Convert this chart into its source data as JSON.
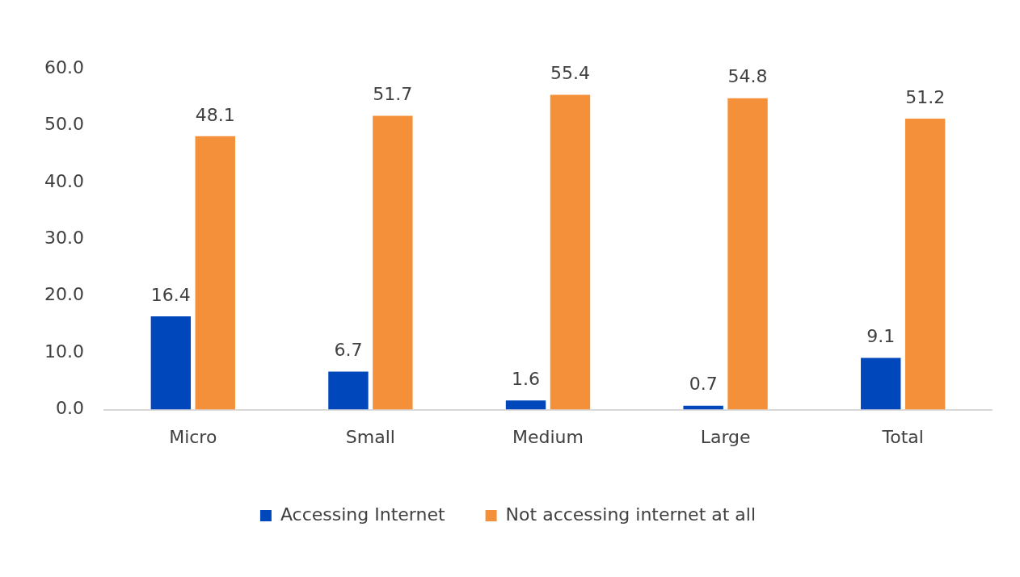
{
  "chart_data": {
    "type": "bar",
    "categories": [
      "Micro",
      "Small",
      "Medium",
      "Large",
      "Total"
    ],
    "series": [
      {
        "name": "Accessing Internet",
        "color": "#0047bb",
        "values": [
          16.4,
          6.7,
          1.6,
          0.7,
          9.1
        ]
      },
      {
        "name": "Not accessing internet at all",
        "color": "#f5903a",
        "values": [
          48.1,
          51.7,
          55.4,
          54.8,
          51.2
        ]
      }
    ],
    "ylim": [
      0,
      60
    ],
    "yticks": [
      {
        "value": 0,
        "label": "0.0"
      },
      {
        "value": 10,
        "label": "10.0"
      },
      {
        "value": 20,
        "label": "20.0"
      },
      {
        "value": 30,
        "label": "30.0"
      },
      {
        "value": 40,
        "label": "40.0"
      },
      {
        "value": 50,
        "label": "50.0"
      },
      {
        "value": 60,
        "label": "60.0"
      }
    ],
    "grid": false,
    "legend": "bottom",
    "data_labels": true
  }
}
